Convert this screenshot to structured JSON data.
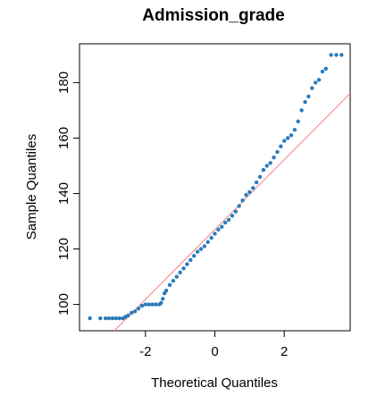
{
  "chart_data": {
    "type": "scatter",
    "subtype": "qq-plot",
    "title": "Admission_grade",
    "xlabel": "Theoretical Quantiles",
    "ylabel": "Sample Quantiles",
    "xlim": [
      -3.9,
      3.9
    ],
    "ylim": [
      90.5,
      194
    ],
    "xticks": [
      -2,
      0,
      2
    ],
    "xtick_labels": [
      "-2",
      "0",
      "2"
    ],
    "yticks": [
      100,
      120,
      140,
      160,
      180
    ],
    "ytick_labels": [
      "100",
      "120",
      "140",
      "160",
      "180"
    ],
    "grid": false,
    "legend": "none",
    "point_color": "#2b7bba",
    "reference_line_color": "#f08080",
    "reference_line": {
      "intercept": 127,
      "slope": 12.6
    },
    "series": [
      {
        "points": [
          [
            -3.6,
            95
          ],
          [
            -3.3,
            95
          ],
          [
            -3.15,
            95
          ],
          [
            -3.05,
            95
          ],
          [
            -2.95,
            95
          ],
          [
            -2.85,
            95
          ],
          [
            -2.75,
            95
          ],
          [
            -2.65,
            95
          ],
          [
            -2.58,
            95.5
          ],
          [
            -2.5,
            96
          ],
          [
            -2.4,
            97
          ],
          [
            -2.3,
            97.5
          ],
          [
            -2.2,
            98.5
          ],
          [
            -2.1,
            99.5
          ],
          [
            -2.0,
            100
          ],
          [
            -1.9,
            100
          ],
          [
            -1.8,
            100
          ],
          [
            -1.7,
            100
          ],
          [
            -1.6,
            100
          ],
          [
            -1.55,
            100.5
          ],
          [
            -1.5,
            102
          ],
          [
            -1.45,
            104
          ],
          [
            -1.4,
            105
          ],
          [
            -1.3,
            107
          ],
          [
            -1.2,
            108.5
          ],
          [
            -1.1,
            110
          ],
          [
            -1.0,
            111.5
          ],
          [
            -0.9,
            113
          ],
          [
            -0.8,
            114.5
          ],
          [
            -0.7,
            116
          ],
          [
            -0.6,
            117.5
          ],
          [
            -0.5,
            119
          ],
          [
            -0.4,
            120
          ],
          [
            -0.3,
            121
          ],
          [
            -0.2,
            122.5
          ],
          [
            -0.1,
            124
          ],
          [
            0.0,
            125.5
          ],
          [
            0.1,
            127
          ],
          [
            0.2,
            128
          ],
          [
            0.3,
            129.5
          ],
          [
            0.4,
            130.5
          ],
          [
            0.5,
            132
          ],
          [
            0.6,
            133.5
          ],
          [
            0.7,
            135.5
          ],
          [
            0.8,
            137.5
          ],
          [
            0.9,
            139.5
          ],
          [
            1.0,
            140.5
          ],
          [
            1.1,
            142
          ],
          [
            1.2,
            144
          ],
          [
            1.3,
            146
          ],
          [
            1.4,
            148.5
          ],
          [
            1.5,
            150
          ],
          [
            1.6,
            151
          ],
          [
            1.7,
            153
          ],
          [
            1.8,
            155
          ],
          [
            1.9,
            157
          ],
          [
            2.0,
            159
          ],
          [
            2.1,
            160
          ],
          [
            2.2,
            161
          ],
          [
            2.3,
            163
          ],
          [
            2.4,
            166
          ],
          [
            2.5,
            170
          ],
          [
            2.6,
            173
          ],
          [
            2.7,
            175
          ],
          [
            2.8,
            178
          ],
          [
            2.9,
            180
          ],
          [
            3.0,
            181
          ],
          [
            3.1,
            184
          ],
          [
            3.2,
            185
          ],
          [
            3.35,
            190
          ],
          [
            3.5,
            190
          ],
          [
            3.65,
            190
          ]
        ]
      }
    ]
  }
}
